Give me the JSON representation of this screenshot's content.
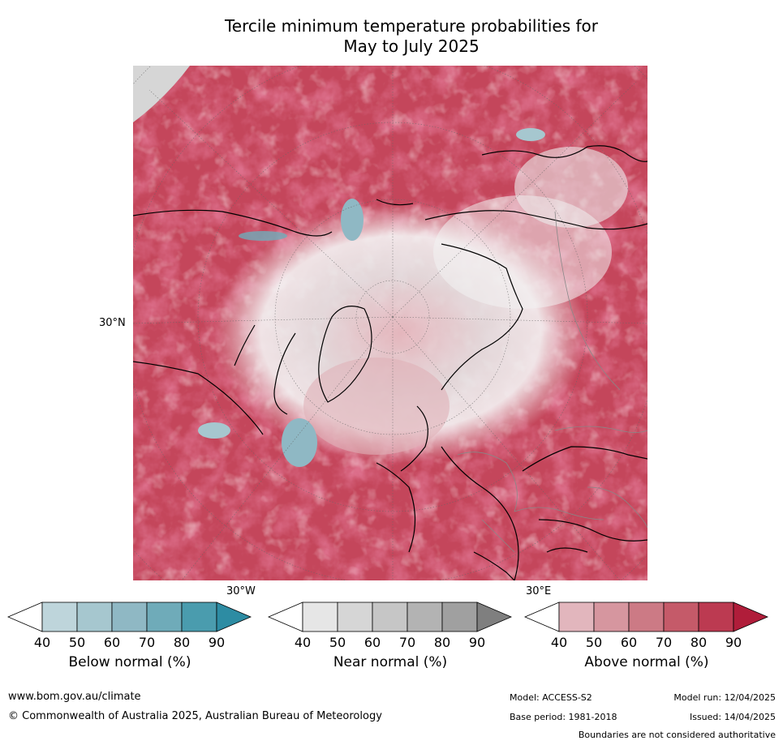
{
  "title_line1": "Tercile minimum temperature probabilities for",
  "title_line2": "May to July 2025",
  "map": {
    "lat_label": "30°N",
    "lon_label_west": "30°W",
    "lon_label_east": "30°E"
  },
  "colorbars": [
    {
      "label": "Below normal (%)",
      "ticks": [
        "40",
        "50",
        "60",
        "70",
        "80",
        "90"
      ],
      "colors": [
        "#ffffff",
        "#bed5db",
        "#a6c7cf",
        "#8fb8c4",
        "#6fabb9",
        "#4a9cae",
        "#2d8ca3"
      ]
    },
    {
      "label": "Near normal (%)",
      "ticks": [
        "40",
        "50",
        "60",
        "70",
        "80",
        "90"
      ],
      "colors": [
        "#ffffff",
        "#e6e6e6",
        "#d6d6d6",
        "#c6c6c6",
        "#b3b3b3",
        "#a0a0a0",
        "#7f7f7f"
      ]
    },
    {
      "label": "Above normal (%)",
      "ticks": [
        "40",
        "50",
        "60",
        "70",
        "80",
        "90"
      ],
      "colors": [
        "#ffffff",
        "#e2b6bd",
        "#d6969f",
        "#cc7a85",
        "#c55a69",
        "#bc3a51",
        "#b01d3a"
      ]
    }
  ],
  "footer": {
    "website": "www.bom.gov.au/climate",
    "copyright": "© Commonwealth of Australia 2025, Australian Bureau of Meteorology",
    "model": "Model: ACCESS-S2",
    "base_period": "Base period: 1981-2018",
    "model_run": "Model run: 12/04/2025",
    "issued": "Issued: 14/04/2025",
    "disclaimer": "Boundaries are not considered authoritative"
  }
}
